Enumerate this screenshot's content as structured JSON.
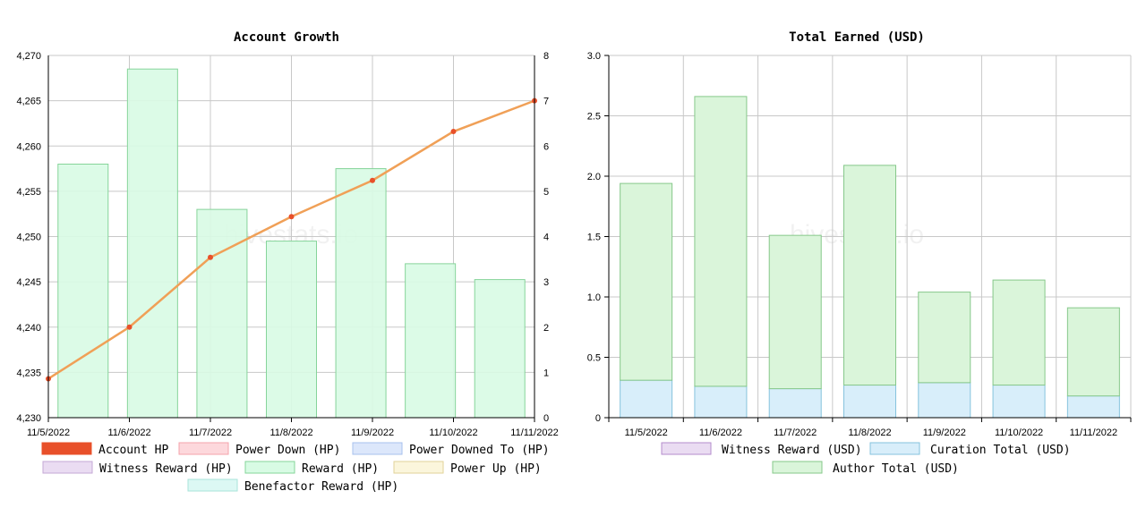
{
  "chart_data": [
    {
      "type": "bar",
      "title": "Account Growth",
      "watermark": "hivestats.io",
      "categories": [
        "11/5/2022",
        "11/6/2022",
        "11/7/2022",
        "11/8/2022",
        "11/9/2022",
        "11/10/2022",
        "11/11/2022"
      ],
      "ylim_left": [
        4230,
        4270
      ],
      "yticks_left": [
        "4,230",
        "4,235",
        "4,240",
        "4,245",
        "4,250",
        "4,255",
        "4,260",
        "4,265",
        "4,270"
      ],
      "ylim_right": [
        0,
        8
      ],
      "yticks_right": [
        "0",
        "1",
        "2",
        "3",
        "4",
        "5",
        "6",
        "7",
        "8"
      ],
      "grid": true,
      "legend_position": "bottom",
      "colors": {
        "account_hp": "#e8502a",
        "account_hp_line": "#f0a057",
        "reward_fill": "#d8fbe4",
        "reward_stroke": "#86d49a"
      },
      "series": [
        {
          "name": "Account HP",
          "axis": "left",
          "kind": "line",
          "values": [
            4234.3,
            4240.0,
            4247.7,
            4252.2,
            4256.2,
            4261.6,
            4265.0
          ]
        },
        {
          "name": "Reward (HP)",
          "axis": "right",
          "kind": "bar",
          "values": [
            5.6,
            7.7,
            4.6,
            3.9,
            5.5,
            3.4,
            3.05
          ]
        }
      ],
      "legend": [
        {
          "name": "Account HP",
          "fill": "#e8502a",
          "stroke": "#e8502a"
        },
        {
          "name": "Power Down (HP)",
          "fill": "#fdd8dc",
          "stroke": "#f4a3ab"
        },
        {
          "name": "Power Downed To (HP)",
          "fill": "#dce7fb",
          "stroke": "#a7c0ee"
        },
        {
          "name": "Witness Reward (HP)",
          "fill": "#eadcf2",
          "stroke": "#c4a9d6"
        },
        {
          "name": "Reward (HP)",
          "fill": "#d8fbe4",
          "stroke": "#86d49a"
        },
        {
          "name": "Power Up (HP)",
          "fill": "#fbf6dc",
          "stroke": "#e2d39a"
        },
        {
          "name": "Benefactor Reward (HP)",
          "fill": "#dcf8f4",
          "stroke": "#a9e3da"
        }
      ]
    },
    {
      "type": "bar",
      "stacked": true,
      "title": "Total Earned (USD)",
      "watermark": "hivestats.io",
      "categories": [
        "11/5/2022",
        "11/6/2022",
        "11/7/2022",
        "11/8/2022",
        "11/9/2022",
        "11/10/2022",
        "11/11/2022"
      ],
      "ylim": [
        0,
        3
      ],
      "yticks": [
        "0",
        "0.5",
        "1.0",
        "1.5",
        "2.0",
        "2.5",
        "3.0"
      ],
      "grid": true,
      "legend_position": "bottom",
      "series": [
        {
          "name": "Witness Reward (USD)",
          "values": [
            0,
            0,
            0,
            0,
            0,
            0,
            0
          ]
        },
        {
          "name": "Curation Total (USD)",
          "values": [
            0.31,
            0.26,
            0.24,
            0.27,
            0.29,
            0.27,
            0.18
          ]
        },
        {
          "name": "Author Total (USD)",
          "values": [
            1.63,
            2.4,
            1.27,
            1.82,
            0.75,
            0.87,
            0.73
          ]
        }
      ],
      "legend": [
        {
          "name": "Witness Reward (USD)",
          "fill": "#eadcf2",
          "stroke": "#b48ccc"
        },
        {
          "name": "Curation Total (USD)",
          "fill": "#d8eefa",
          "stroke": "#86c3dd"
        },
        {
          "name": "Author Total (USD)",
          "fill": "#daf5da",
          "stroke": "#86c88a"
        }
      ]
    }
  ]
}
